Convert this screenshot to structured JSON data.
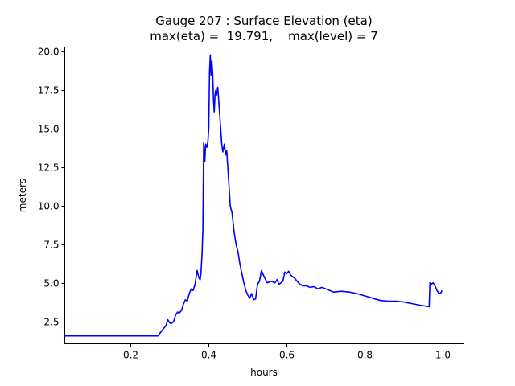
{
  "chart_data": {
    "type": "line",
    "title": "Gauge 207 : Surface Elevation (eta)",
    "subtitle": "max(eta) =  19.791,    max(level) = 7",
    "xlabel": "hours",
    "ylabel": "meters",
    "xlim": [
      0.031,
      1.054
    ],
    "ylim": [
      1.04,
      20.31
    ],
    "xticks": [
      0.2,
      0.4,
      0.6,
      0.8,
      1.0
    ],
    "xtick_labels": [
      "0.2",
      "0.4",
      "0.6",
      "0.8",
      "1.0"
    ],
    "yticks": [
      2.5,
      5.0,
      7.5,
      10.0,
      12.5,
      15.0,
      17.5,
      20.0
    ],
    "ytick_labels": [
      "2.5",
      "5.0",
      "7.5",
      "10.0",
      "12.5",
      "15.0",
      "17.5",
      "20.0"
    ],
    "grid": false,
    "series": [
      {
        "name": "eta",
        "color": "#0000ff",
        "x": [
          0.031,
          0.1,
          0.2,
          0.27,
          0.28,
          0.29,
          0.295,
          0.3,
          0.305,
          0.31,
          0.315,
          0.32,
          0.325,
          0.33,
          0.335,
          0.34,
          0.345,
          0.35,
          0.355,
          0.36,
          0.365,
          0.37,
          0.375,
          0.378,
          0.38,
          0.383,
          0.385,
          0.387,
          0.39,
          0.392,
          0.395,
          0.398,
          0.4,
          0.402,
          0.404,
          0.406,
          0.408,
          0.41,
          0.412,
          0.414,
          0.416,
          0.418,
          0.42,
          0.423,
          0.426,
          0.43,
          0.433,
          0.436,
          0.44,
          0.443,
          0.446,
          0.45,
          0.455,
          0.46,
          0.465,
          0.47,
          0.475,
          0.48,
          0.485,
          0.49,
          0.495,
          0.5,
          0.505,
          0.51,
          0.515,
          0.52,
          0.525,
          0.53,
          0.535,
          0.54,
          0.55,
          0.56,
          0.57,
          0.575,
          0.58,
          0.585,
          0.59,
          0.595,
          0.6,
          0.605,
          0.61,
          0.62,
          0.63,
          0.64,
          0.65,
          0.66,
          0.67,
          0.68,
          0.69,
          0.7,
          0.72,
          0.74,
          0.76,
          0.78,
          0.8,
          0.82,
          0.84,
          0.86,
          0.88,
          0.9,
          0.92,
          0.94,
          0.965,
          0.967,
          0.97,
          0.975,
          0.98,
          0.985,
          0.99,
          0.995,
          0.998
        ],
        "values": [
          1.55,
          1.55,
          1.55,
          1.55,
          1.9,
          2.2,
          2.6,
          2.4,
          2.35,
          2.5,
          2.9,
          3.1,
          3.05,
          3.2,
          3.6,
          3.9,
          3.8,
          4.3,
          4.6,
          4.5,
          4.9,
          5.8,
          5.3,
          5.2,
          5.6,
          7.0,
          8.5,
          14.1,
          12.9,
          14.0,
          13.8,
          14.2,
          15.0,
          18.7,
          19.8,
          18.5,
          19.4,
          18.6,
          17.0,
          16.1,
          17.2,
          17.5,
          17.2,
          17.7,
          16.7,
          15.2,
          14.1,
          13.5,
          14.0,
          13.3,
          13.6,
          12.0,
          10.0,
          9.5,
          8.3,
          7.5,
          7.0,
          6.2,
          5.6,
          5.0,
          4.5,
          4.2,
          4.0,
          4.3,
          3.9,
          3.95,
          4.9,
          5.1,
          5.8,
          5.5,
          5.0,
          5.1,
          5.0,
          5.2,
          4.9,
          5.0,
          5.1,
          5.7,
          5.6,
          5.75,
          5.5,
          5.3,
          5.0,
          4.8,
          4.8,
          4.7,
          4.75,
          4.6,
          4.7,
          4.6,
          4.4,
          4.45,
          4.4,
          4.3,
          4.15,
          4.0,
          3.85,
          3.8,
          3.8,
          3.75,
          3.65,
          3.55,
          3.45,
          5.0,
          4.9,
          5.0,
          4.8,
          4.5,
          4.3,
          4.35,
          4.5
        ]
      }
    ]
  }
}
